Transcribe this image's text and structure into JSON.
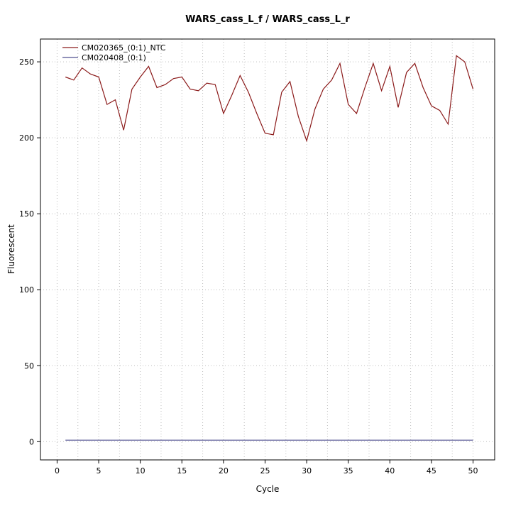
{
  "chart_data": {
    "type": "line",
    "title": "WARS_cass_L_f / WARS_cass_L_r",
    "xlabel": "Cycle",
    "ylabel": "Fluorescent",
    "xlim": [
      -2,
      52.6
    ],
    "ylim": [
      -12,
      265
    ],
    "x_ticks": [
      0,
      5,
      10,
      15,
      20,
      25,
      30,
      35,
      40,
      45,
      50
    ],
    "y_ticks": [
      0,
      50,
      100,
      150,
      200,
      250
    ],
    "grid": {
      "color": "#bdbdbd",
      "style": "dotted",
      "x_values": [
        0,
        2.5,
        5,
        7.5,
        10,
        12.5,
        15,
        17.5,
        20,
        22.5,
        25,
        27.5,
        30,
        32.5,
        35,
        37.5,
        40,
        42.5,
        45,
        47.5,
        50
      ],
      "y_values": [
        0,
        50,
        100,
        150,
        200,
        250
      ]
    },
    "legend": {
      "position": "top-left"
    },
    "x": [
      1,
      2,
      3,
      4,
      5,
      6,
      7,
      8,
      9,
      10,
      11,
      12,
      13,
      14,
      15,
      16,
      17,
      18,
      19,
      20,
      21,
      22,
      23,
      24,
      25,
      26,
      27,
      28,
      29,
      30,
      31,
      32,
      33,
      34,
      35,
      36,
      37,
      38,
      39,
      40,
      41,
      42,
      43,
      44,
      45,
      46,
      47,
      48,
      49,
      50
    ],
    "series": [
      {
        "name": "CM020365_(0:1)_NTC",
        "color": "#8b1a1a",
        "values": [
          240,
          238,
          246,
          242,
          240,
          222,
          225,
          205,
          232,
          240,
          247,
          233,
          235,
          239,
          240,
          232,
          231,
          236,
          235,
          216,
          228,
          241,
          230,
          216,
          203,
          202,
          230,
          237,
          214,
          198,
          219,
          232,
          238,
          249,
          222,
          216,
          233,
          249,
          231,
          247,
          220,
          243,
          249,
          233,
          221,
          218,
          209,
          254,
          250,
          232
        ]
      },
      {
        "name": "CM020408_(0:1)",
        "color": "#4f4f8f",
        "values": [
          1,
          1,
          1,
          1,
          1,
          1,
          1,
          1,
          1,
          1,
          1,
          1,
          1,
          1,
          1,
          1,
          1,
          1,
          1,
          1,
          1,
          1,
          1,
          1,
          1,
          1,
          1,
          1,
          1,
          1,
          1,
          1,
          1,
          1,
          1,
          1,
          1,
          1,
          1,
          1,
          1,
          1,
          1,
          1,
          1,
          1,
          1,
          1,
          1,
          1
        ]
      }
    ]
  }
}
